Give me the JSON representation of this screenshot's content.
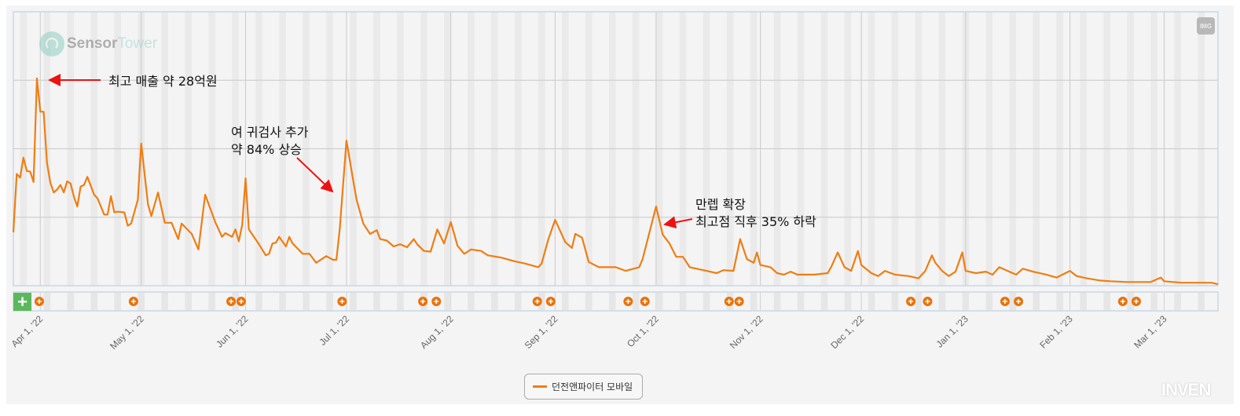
{
  "logo": {
    "part1": "Sensor",
    "part2": "Tower"
  },
  "watermark": "INVEN",
  "toolbar": {
    "export_label": "IMG",
    "add_event_label": "+"
  },
  "legend": {
    "label": "던전앤파이터 모바일"
  },
  "annotations": {
    "peak": "최고 매출 약 28억원",
    "update_line1": "여 귀검사 추가",
    "update_line2": "약 84% 상승",
    "levelcap_line1": "만렙 확장",
    "levelcap_line2": "최고점 직후 35% 하락"
  },
  "colors": {
    "series": "#f07d12",
    "annotation_arrow": "#ee1111",
    "event_marker": "#e8730c",
    "add_button": "#5cb85c"
  },
  "chart_data": {
    "type": "line",
    "title": "",
    "xlabel": "",
    "ylabel": "",
    "y_unit_note": "억원 (estimated; y-axis unlabeled)",
    "xlim": [
      "2022-03-24",
      "2023-03-17"
    ],
    "ylim": [
      0,
      37
    ],
    "grid": true,
    "legend_position": "bottom-center",
    "x_ticks": [
      {
        "date": "2022-04-01",
        "label": "Apr 1, '22"
      },
      {
        "date": "2022-05-01",
        "label": "May 1, '22"
      },
      {
        "date": "2022-06-01",
        "label": "Jun 1, '22"
      },
      {
        "date": "2022-07-01",
        "label": "Jul 1, '22"
      },
      {
        "date": "2022-08-01",
        "label": "Aug 1, '22"
      },
      {
        "date": "2022-09-01",
        "label": "Sep 1, '22"
      },
      {
        "date": "2022-10-01",
        "label": "Oct 1, '22"
      },
      {
        "date": "2022-11-01",
        "label": "Nov 1, '22"
      },
      {
        "date": "2022-12-01",
        "label": "Dec 1, '22"
      },
      {
        "date": "2023-01-01",
        "label": "Jan 1, '23"
      },
      {
        "date": "2023-02-01",
        "label": "Feb 1, '23"
      },
      {
        "date": "2023-03-01",
        "label": "Mar 1, '23"
      }
    ],
    "series": [
      {
        "name": "던전앤파이터 모바일",
        "points": [
          [
            "2022-03-24",
            7.2
          ],
          [
            "2022-03-25",
            15.1
          ],
          [
            "2022-03-26",
            14.6
          ],
          [
            "2022-03-27",
            17.3
          ],
          [
            "2022-03-28",
            15.5
          ],
          [
            "2022-03-29",
            15.4
          ],
          [
            "2022-03-30",
            14.0
          ],
          [
            "2022-03-31",
            28.0
          ],
          [
            "2022-04-01",
            23.5
          ],
          [
            "2022-04-02",
            23.5
          ],
          [
            "2022-04-03",
            16.6
          ],
          [
            "2022-04-04",
            13.9
          ],
          [
            "2022-04-05",
            12.6
          ],
          [
            "2022-04-06",
            13.0
          ],
          [
            "2022-04-07",
            13.6
          ],
          [
            "2022-04-08",
            12.6
          ],
          [
            "2022-04-09",
            14.1
          ],
          [
            "2022-04-10",
            13.8
          ],
          [
            "2022-04-11",
            12.0
          ],
          [
            "2022-04-12",
            10.7
          ],
          [
            "2022-04-13",
            13.4
          ],
          [
            "2022-04-14",
            13.6
          ],
          [
            "2022-04-15",
            14.7
          ],
          [
            "2022-04-17",
            12.3
          ],
          [
            "2022-04-18",
            11.8
          ],
          [
            "2022-04-20",
            9.6
          ],
          [
            "2022-04-21",
            9.6
          ],
          [
            "2022-04-22",
            12.1
          ],
          [
            "2022-04-23",
            9.9
          ],
          [
            "2022-04-24",
            10.0
          ],
          [
            "2022-04-26",
            9.9
          ],
          [
            "2022-04-27",
            8.1
          ],
          [
            "2022-04-28",
            8.4
          ],
          [
            "2022-04-30",
            11.6
          ],
          [
            "2022-05-01",
            19.2
          ],
          [
            "2022-05-03",
            11.0
          ],
          [
            "2022-05-04",
            9.4
          ],
          [
            "2022-05-06",
            12.6
          ],
          [
            "2022-05-08",
            8.5
          ],
          [
            "2022-05-10",
            8.5
          ],
          [
            "2022-05-12",
            6.3
          ],
          [
            "2022-05-13",
            8.4
          ],
          [
            "2022-05-16",
            7.0
          ],
          [
            "2022-05-18",
            4.9
          ],
          [
            "2022-05-20",
            12.3
          ],
          [
            "2022-05-23",
            8.6
          ],
          [
            "2022-05-25",
            6.6
          ],
          [
            "2022-05-26",
            7.1
          ],
          [
            "2022-05-28",
            6.6
          ],
          [
            "2022-05-29",
            7.6
          ],
          [
            "2022-05-30",
            6.0
          ],
          [
            "2022-05-31",
            8.2
          ],
          [
            "2022-06-01",
            14.5
          ],
          [
            "2022-06-02",
            7.6
          ],
          [
            "2022-06-05",
            5.6
          ],
          [
            "2022-06-07",
            4.1
          ],
          [
            "2022-06-08",
            4.3
          ],
          [
            "2022-06-09",
            5.7
          ],
          [
            "2022-06-10",
            5.8
          ],
          [
            "2022-06-11",
            6.6
          ],
          [
            "2022-06-13",
            5.3
          ],
          [
            "2022-06-14",
            6.6
          ],
          [
            "2022-06-15",
            5.7
          ],
          [
            "2022-06-18",
            4.3
          ],
          [
            "2022-06-20",
            4.3
          ],
          [
            "2022-06-22",
            3.1
          ],
          [
            "2022-06-25",
            4.0
          ],
          [
            "2022-06-27",
            3.5
          ],
          [
            "2022-06-28",
            3.5
          ],
          [
            "2022-06-29",
            7.7
          ],
          [
            "2022-07-01",
            19.6
          ],
          [
            "2022-07-03",
            14.2
          ],
          [
            "2022-07-04",
            11.6
          ],
          [
            "2022-07-06",
            8.4
          ],
          [
            "2022-07-08",
            7.0
          ],
          [
            "2022-07-10",
            7.5
          ],
          [
            "2022-07-11",
            6.3
          ],
          [
            "2022-07-13",
            6.1
          ],
          [
            "2022-07-15",
            5.3
          ],
          [
            "2022-07-17",
            5.6
          ],
          [
            "2022-07-19",
            5.2
          ],
          [
            "2022-07-21",
            6.3
          ],
          [
            "2022-07-22",
            5.6
          ],
          [
            "2022-07-24",
            4.7
          ],
          [
            "2022-07-26",
            4.6
          ],
          [
            "2022-07-28",
            7.6
          ],
          [
            "2022-07-30",
            5.7
          ],
          [
            "2022-08-01",
            8.6
          ],
          [
            "2022-08-03",
            5.4
          ],
          [
            "2022-08-05",
            4.3
          ],
          [
            "2022-08-07",
            4.9
          ],
          [
            "2022-08-10",
            4.7
          ],
          [
            "2022-08-12",
            4.1
          ],
          [
            "2022-08-16",
            3.8
          ],
          [
            "2022-08-20",
            3.3
          ],
          [
            "2022-08-23",
            3.0
          ],
          [
            "2022-08-27",
            2.5
          ],
          [
            "2022-08-28",
            3.0
          ],
          [
            "2022-08-30",
            6.3
          ],
          [
            "2022-09-01",
            8.9
          ],
          [
            "2022-09-04",
            5.9
          ],
          [
            "2022-09-06",
            5.1
          ],
          [
            "2022-09-07",
            7.0
          ],
          [
            "2022-09-09",
            6.5
          ],
          [
            "2022-09-11",
            3.2
          ],
          [
            "2022-09-14",
            2.5
          ],
          [
            "2022-09-19",
            2.5
          ],
          [
            "2022-09-22",
            2.0
          ],
          [
            "2022-09-26",
            2.5
          ],
          [
            "2022-09-27",
            3.6
          ],
          [
            "2022-10-01",
            10.7
          ],
          [
            "2022-10-03",
            6.9
          ],
          [
            "2022-10-05",
            5.7
          ],
          [
            "2022-10-07",
            3.9
          ],
          [
            "2022-10-09",
            3.9
          ],
          [
            "2022-10-11",
            2.5
          ],
          [
            "2022-10-16",
            2.0
          ],
          [
            "2022-10-19",
            1.7
          ],
          [
            "2022-10-21",
            2.1
          ],
          [
            "2022-10-24",
            2.0
          ],
          [
            "2022-10-26",
            6.3
          ],
          [
            "2022-10-28",
            3.6
          ],
          [
            "2022-10-30",
            3.1
          ],
          [
            "2022-10-31",
            4.5
          ],
          [
            "2022-11-01",
            2.8
          ],
          [
            "2022-11-04",
            2.5
          ],
          [
            "2022-11-06",
            1.7
          ],
          [
            "2022-11-08",
            1.5
          ],
          [
            "2022-11-10",
            1.9
          ],
          [
            "2022-11-12",
            1.5
          ],
          [
            "2022-11-17",
            1.5
          ],
          [
            "2022-11-21",
            1.7
          ],
          [
            "2022-11-22",
            2.5
          ],
          [
            "2022-11-24",
            4.5
          ],
          [
            "2022-11-26",
            2.5
          ],
          [
            "2022-11-28",
            2.0
          ],
          [
            "2022-11-30",
            4.7
          ],
          [
            "2022-12-01",
            2.8
          ],
          [
            "2022-12-04",
            1.7
          ],
          [
            "2022-12-06",
            1.3
          ],
          [
            "2022-12-08",
            2.0
          ],
          [
            "2022-12-11",
            1.5
          ],
          [
            "2022-12-15",
            1.3
          ],
          [
            "2022-12-18",
            1.0
          ],
          [
            "2022-12-20",
            2.0
          ],
          [
            "2022-12-22",
            4.1
          ],
          [
            "2022-12-23",
            3.1
          ],
          [
            "2022-12-25",
            2.0
          ],
          [
            "2022-12-27",
            1.3
          ],
          [
            "2022-12-29",
            1.9
          ],
          [
            "2022-12-31",
            4.5
          ],
          [
            "2023-01-01",
            2.0
          ],
          [
            "2023-01-04",
            1.7
          ],
          [
            "2023-01-07",
            1.9
          ],
          [
            "2023-01-09",
            1.5
          ],
          [
            "2023-01-11",
            2.5
          ],
          [
            "2023-01-14",
            1.9
          ],
          [
            "2023-01-16",
            1.5
          ],
          [
            "2023-01-18",
            2.3
          ],
          [
            "2023-01-21",
            1.9
          ],
          [
            "2023-01-25",
            1.5
          ],
          [
            "2023-01-28",
            1.1
          ],
          [
            "2023-02-01",
            2.0
          ],
          [
            "2023-02-03",
            1.3
          ],
          [
            "2023-02-06",
            1.0
          ],
          [
            "2023-02-10",
            0.7
          ],
          [
            "2023-02-13",
            0.6
          ],
          [
            "2023-02-18",
            0.5
          ],
          [
            "2023-02-25",
            0.5
          ],
          [
            "2023-02-28",
            1.1
          ],
          [
            "2023-03-01",
            0.6
          ],
          [
            "2023-03-06",
            0.4
          ],
          [
            "2023-03-11",
            0.4
          ],
          [
            "2023-03-15",
            0.4
          ],
          [
            "2023-03-17",
            0.2
          ]
        ]
      }
    ],
    "events": [
      "2022-03-31",
      "2022-04-28",
      "2022-05-27",
      "2022-05-30",
      "2022-06-29",
      "2022-07-23",
      "2022-07-27",
      "2022-08-26",
      "2022-08-30",
      "2022-09-22",
      "2022-09-27",
      "2022-10-22",
      "2022-10-25",
      "2022-12-15",
      "2022-12-20",
      "2023-01-12",
      "2023-01-16",
      "2023-02-16",
      "2023-02-20"
    ]
  }
}
